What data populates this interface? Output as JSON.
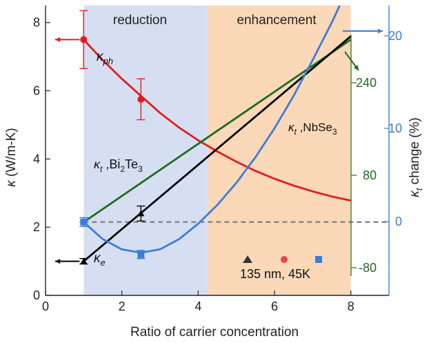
{
  "chart_data": {
    "type": "line",
    "xlabel": "Ratio of carrier concentration",
    "ylabel_left": "κ (W/m-K)",
    "ylabel_right": "κt change (%)",
    "xlim": [
      0,
      9
    ],
    "ylim": [
      0,
      8.5
    ],
    "x_ticks": [
      "0",
      "2",
      "4",
      "6",
      "8"
    ],
    "y_ticks": [
      "0",
      "2",
      "4",
      "6",
      "8"
    ],
    "right_ticks_blue": [
      "-80",
      "0",
      "80",
      "240"
    ],
    "right_ticks_blue_numeric": [
      "0",
      "10",
      "20"
    ],
    "regions": [
      {
        "label": "reduction",
        "x": [
          1,
          4.25
        ],
        "color": "#d6dff1"
      },
      {
        "label": "enhancement",
        "x": [
          4.25,
          8
        ],
        "color": "#fad8b8"
      }
    ],
    "series": [
      {
        "name": "κph",
        "color": "#e41a1c",
        "x": [
          1,
          1.5,
          2,
          2.5,
          3,
          3.5,
          4,
          4.5,
          5,
          5.5,
          6,
          6.5,
          7,
          7.5,
          8
        ],
        "y": [
          7.5,
          6.9,
          6.35,
          5.85,
          5.35,
          4.92,
          4.55,
          4.22,
          3.92,
          3.65,
          3.42,
          3.22,
          3.05,
          2.9,
          2.78
        ]
      },
      {
        "name": "κt ,Bi2Te3",
        "color": "#1e6b1e",
        "x": [
          1,
          8
        ],
        "y": [
          2.15,
          7.5
        ]
      },
      {
        "name": "κe",
        "color": "#000000",
        "x": [
          1,
          8
        ],
        "y": [
          1.0,
          7.6
        ]
      },
      {
        "name": "κt ,NbSe3",
        "color": "#3a7dd8",
        "x": [
          1,
          1.5,
          2,
          2.5,
          3,
          3.5,
          4,
          4.5,
          5,
          5.5,
          6,
          6.5,
          7,
          7.5,
          8
        ],
        "y": [
          2.15,
          1.65,
          1.35,
          1.25,
          1.35,
          1.65,
          2.1,
          2.65,
          3.3,
          4.05,
          4.9,
          5.85,
          6.9,
          8.0,
          9.2
        ]
      }
    ],
    "markers": [
      {
        "series": "κph",
        "shape": "circle",
        "color": "#e41a1c",
        "points": [
          {
            "x": 1,
            "y": 7.5,
            "err": 0.85
          },
          {
            "x": 2.5,
            "y": 5.75,
            "err": 0.6
          }
        ]
      },
      {
        "series": "κe",
        "shape": "triangle",
        "color": "#000000",
        "points": [
          {
            "x": 1,
            "y": 1.0,
            "err": 0.08
          },
          {
            "x": 2.5,
            "y": 2.4,
            "err": 0.22
          }
        ]
      },
      {
        "series": "κt ,NbSe3",
        "shape": "square",
        "color": "#3a7dd8",
        "points": [
          {
            "x": 1,
            "y": 2.15,
            "err": 0.13
          },
          {
            "x": 2.5,
            "y": 1.2,
            "err": 0.12
          }
        ]
      },
      {
        "series": "κt ,NbSe3",
        "shape": "triangle",
        "color": "#3a7dd8",
        "points": [
          {
            "x": 2.5,
            "y": 1.2,
            "err": 0
          }
        ]
      }
    ],
    "reference_line": {
      "y": 2.15,
      "style": "dashed",
      "color": "#888888"
    },
    "annotations": {
      "reduction": "reduction",
      "enhancement": "enhancement",
      "kph": "κph",
      "ke": "κe",
      "kt_bi": "κt ,Bi2Te3",
      "kt_nb": "κt ,NbSe3",
      "condition": "135 nm, 45K"
    }
  }
}
